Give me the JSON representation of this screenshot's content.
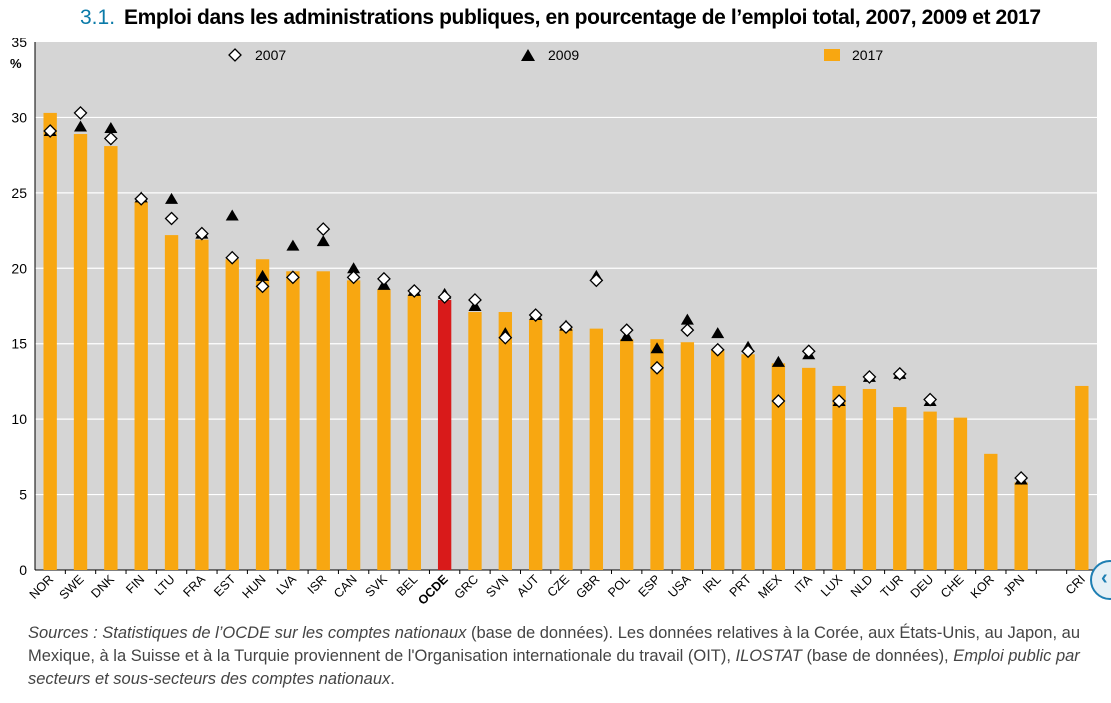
{
  "title": {
    "number": "3.1.",
    "text": "Emploi dans les administrations publiques, en pourcentage de l’emploi total, 2007, 2009 et 2017"
  },
  "sources": {
    "part1": "Sources : Statistiques de l’OCDE sur les comptes nationaux",
    "part2": " (base de données). Les données relatives à la Corée, aux États-Unis, au Japon, au Mexique, à la Suisse et à la Turquie proviennent de l'Organisation internationale du travail (OIT), ",
    "part3": "ILOSTAT",
    "part4": " (base de données), ",
    "part5": "Emploi public par secteurs et sous-secteurs des comptes nationaux",
    "part6": "."
  },
  "side_button": {
    "glyph": "‹"
  },
  "chart_data": {
    "type": "bar",
    "ylabel": "%",
    "ylim": [
      0,
      35
    ],
    "yticks": [
      0,
      5,
      10,
      15,
      20,
      25,
      30,
      35
    ],
    "grid": true,
    "legend_placement": "top",
    "categories": [
      "NOR",
      "SWE",
      "DNK",
      "FIN",
      "LTU",
      "FRA",
      "EST",
      "HUN",
      "LVA",
      "ISR",
      "CAN",
      "SVK",
      "BEL",
      "OCDE",
      "GRC",
      "SVN",
      "AUT",
      "CZE",
      "GBR",
      "POL",
      "ESP",
      "USA",
      "IRL",
      "PRT",
      "MEX",
      "ITA",
      "LUX",
      "NLD",
      "TUR",
      "DEU",
      "CHE",
      "KOR",
      "JPN",
      "",
      "CRI"
    ],
    "highlight_category": "OCDE",
    "series": [
      {
        "name": "2007",
        "marker": "diamond",
        "values": [
          29.1,
          30.3,
          28.6,
          24.6,
          23.3,
          22.3,
          20.7,
          18.8,
          19.4,
          22.6,
          19.4,
          19.3,
          18.5,
          18.1,
          17.9,
          15.4,
          16.9,
          16.1,
          19.2,
          15.9,
          13.4,
          15.9,
          14.6,
          14.5,
          11.2,
          14.5,
          11.2,
          12.8,
          13.0,
          11.3,
          null,
          null,
          6.1,
          null,
          null
        ]
      },
      {
        "name": "2009",
        "marker": "triangle",
        "values": [
          29.1,
          29.4,
          29.3,
          24.7,
          24.6,
          22.3,
          23.5,
          19.5,
          21.5,
          21.8,
          20.0,
          18.9,
          18.5,
          18.3,
          17.5,
          15.7,
          16.9,
          16.2,
          19.5,
          15.5,
          14.7,
          16.6,
          15.7,
          14.8,
          13.8,
          14.3,
          11.2,
          12.8,
          13.0,
          11.2,
          null,
          null,
          6.0,
          null,
          null
        ]
      },
      {
        "name": "2017",
        "marker": "bar",
        "values": [
          30.3,
          28.9,
          28.1,
          24.4,
          22.2,
          21.9,
          20.6,
          20.6,
          19.8,
          19.8,
          19.2,
          18.6,
          18.2,
          17.9,
          17.1,
          17.1,
          16.6,
          16.0,
          16.0,
          15.3,
          15.3,
          15.1,
          14.6,
          14.3,
          13.7,
          13.4,
          12.2,
          12.0,
          10.8,
          10.5,
          10.1,
          7.7,
          5.8,
          null,
          12.2
        ]
      }
    ],
    "colors": {
      "plot_bg": "#d5d5d5",
      "bar": "#f8a711",
      "bar_highlight": "#d91a1a",
      "grid": "#ffffff",
      "marker_fill": "#ffffff",
      "marker_stroke": "#000000"
    }
  }
}
